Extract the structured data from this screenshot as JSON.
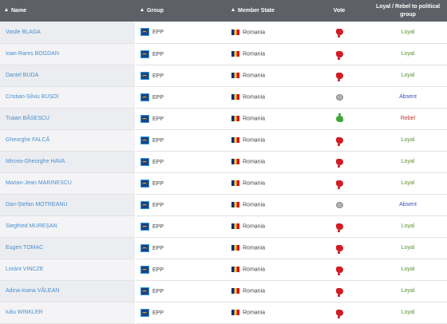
{
  "header": {
    "name": "Name",
    "group": "Group",
    "member_state": "Member State",
    "vote": "Vote",
    "loyal": "Loyal / Rebel to political group"
  },
  "colors": {
    "header_bg": "#5e6067",
    "name_link": "#4a8fcf",
    "loyal": "#5b8f34",
    "absent": "#4050b0",
    "rebel": "#c0392b",
    "vote_against": "#d31b23",
    "vote_for": "#3ea83a",
    "vote_abstain": "#b0b0b0"
  },
  "rows": [
    {
      "name": "Vasile BLAGA",
      "group": "EPP",
      "state": "Romania",
      "vote": "against",
      "status": "Loyal"
    },
    {
      "name": "Ioan-Rareș BOGDAN",
      "group": "EPP",
      "state": "Romania",
      "vote": "against",
      "status": "Loyal"
    },
    {
      "name": "Daniel BUDA",
      "group": "EPP",
      "state": "Romania",
      "vote": "against",
      "status": "Loyal"
    },
    {
      "name": "Cristian-Silviu BUȘOI",
      "group": "EPP",
      "state": "Romania",
      "vote": "abstain",
      "status": "Absent"
    },
    {
      "name": "Traian BĂSESCU",
      "group": "EPP",
      "state": "Romania",
      "vote": "for",
      "status": "Rebel"
    },
    {
      "name": "Gheorghe FALCĂ",
      "group": "EPP",
      "state": "Romania",
      "vote": "against",
      "status": "Loyal"
    },
    {
      "name": "Mircea-Gheorghe HAVA",
      "group": "EPP",
      "state": "Romania",
      "vote": "against",
      "status": "Loyal"
    },
    {
      "name": "Marian-Jean MARINESCU",
      "group": "EPP",
      "state": "Romania",
      "vote": "against",
      "status": "Loyal"
    },
    {
      "name": "Dan-Ștefan MOTREANU",
      "group": "EPP",
      "state": "Romania",
      "vote": "abstain",
      "status": "Absent"
    },
    {
      "name": "Siegfried MUREȘAN",
      "group": "EPP",
      "state": "Romania",
      "vote": "against",
      "status": "Loyal"
    },
    {
      "name": "Eugen TOMAC",
      "group": "EPP",
      "state": "Romania",
      "vote": "against",
      "status": "Loyal"
    },
    {
      "name": "Lorànt VINCZE",
      "group": "EPP",
      "state": "Romania",
      "vote": "against",
      "status": "Loyal"
    },
    {
      "name": "Adina-Ioana VĂLEAN",
      "group": "EPP",
      "state": "Romania",
      "vote": "against",
      "status": "Loyal"
    },
    {
      "name": "Iuliu WINKLER",
      "group": "EPP",
      "state": "Romania",
      "vote": "against",
      "status": "Loyal"
    }
  ]
}
